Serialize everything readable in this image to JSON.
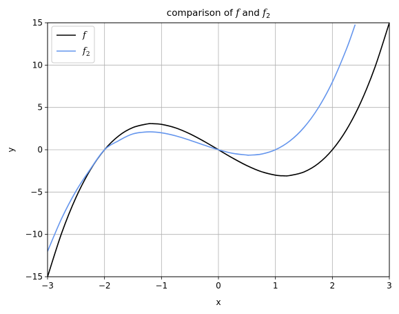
{
  "chart_data": {
    "type": "line",
    "title": {
      "prefix": "comparison of ",
      "f": "f",
      "middle": " and ",
      "f2": "f",
      "f2_sub": "2"
    },
    "xlabel": "x",
    "ylabel": "y",
    "xlim": [
      -3,
      3
    ],
    "ylim": [
      -15,
      15
    ],
    "grid": true,
    "legend_position": "top-left",
    "x_ticks": [
      -3,
      -2,
      -1,
      0,
      1,
      2,
      3
    ],
    "x_tick_labels": [
      "−3",
      "−2",
      "−1",
      "0",
      "1",
      "2",
      "3"
    ],
    "y_ticks": [
      -15,
      -10,
      -5,
      0,
      5,
      10,
      15
    ],
    "y_tick_labels": [
      "−15",
      "−10",
      "−5",
      "0",
      "5",
      "10",
      "15"
    ],
    "series": [
      {
        "name": "f",
        "legend_main": "f",
        "legend_sub": "",
        "color": "#000000",
        "x": [
          -3.0,
          -2.75,
          -2.5,
          -2.25,
          -2.0,
          -1.75,
          -1.5,
          -1.25,
          -1.155,
          -1.0,
          -0.75,
          -0.5,
          -0.25,
          0.0,
          0.25,
          0.5,
          0.75,
          1.0,
          1.155,
          1.25,
          1.5,
          1.75,
          2.0,
          2.25,
          2.5,
          2.75,
          3.0
        ],
        "y": [
          -15.0,
          -9.797,
          -5.625,
          -2.391,
          0.0,
          1.641,
          2.625,
          3.047,
          3.079,
          3.0,
          2.578,
          1.875,
          0.984,
          0.0,
          -0.984,
          -1.875,
          -2.578,
          -3.0,
          -3.079,
          -3.047,
          -2.625,
          -1.641,
          0.0,
          2.391,
          5.625,
          9.797,
          15.0
        ]
      },
      {
        "name": "f2",
        "legend_main": "f",
        "legend_sub": "2",
        "color": "#6495ed",
        "x": [
          -3.0,
          -2.75,
          -2.5,
          -2.25,
          -2.0,
          -1.75,
          -1.5,
          -1.215,
          -1.0,
          -0.75,
          -0.5,
          -0.25,
          0.0,
          0.25,
          0.5,
          0.549,
          0.75,
          1.0,
          1.25,
          1.5,
          1.75,
          2.0,
          2.25,
          2.4
        ],
        "y": [
          -12.0,
          -8.078,
          -4.875,
          -2.297,
          0.0,
          1.078,
          1.875,
          2.113,
          2.0,
          1.641,
          1.125,
          0.547,
          0.0,
          -0.422,
          -0.625,
          -0.631,
          -0.516,
          0.0,
          1.016,
          2.625,
          4.922,
          8.0,
          11.953,
          14.784
        ]
      }
    ]
  }
}
